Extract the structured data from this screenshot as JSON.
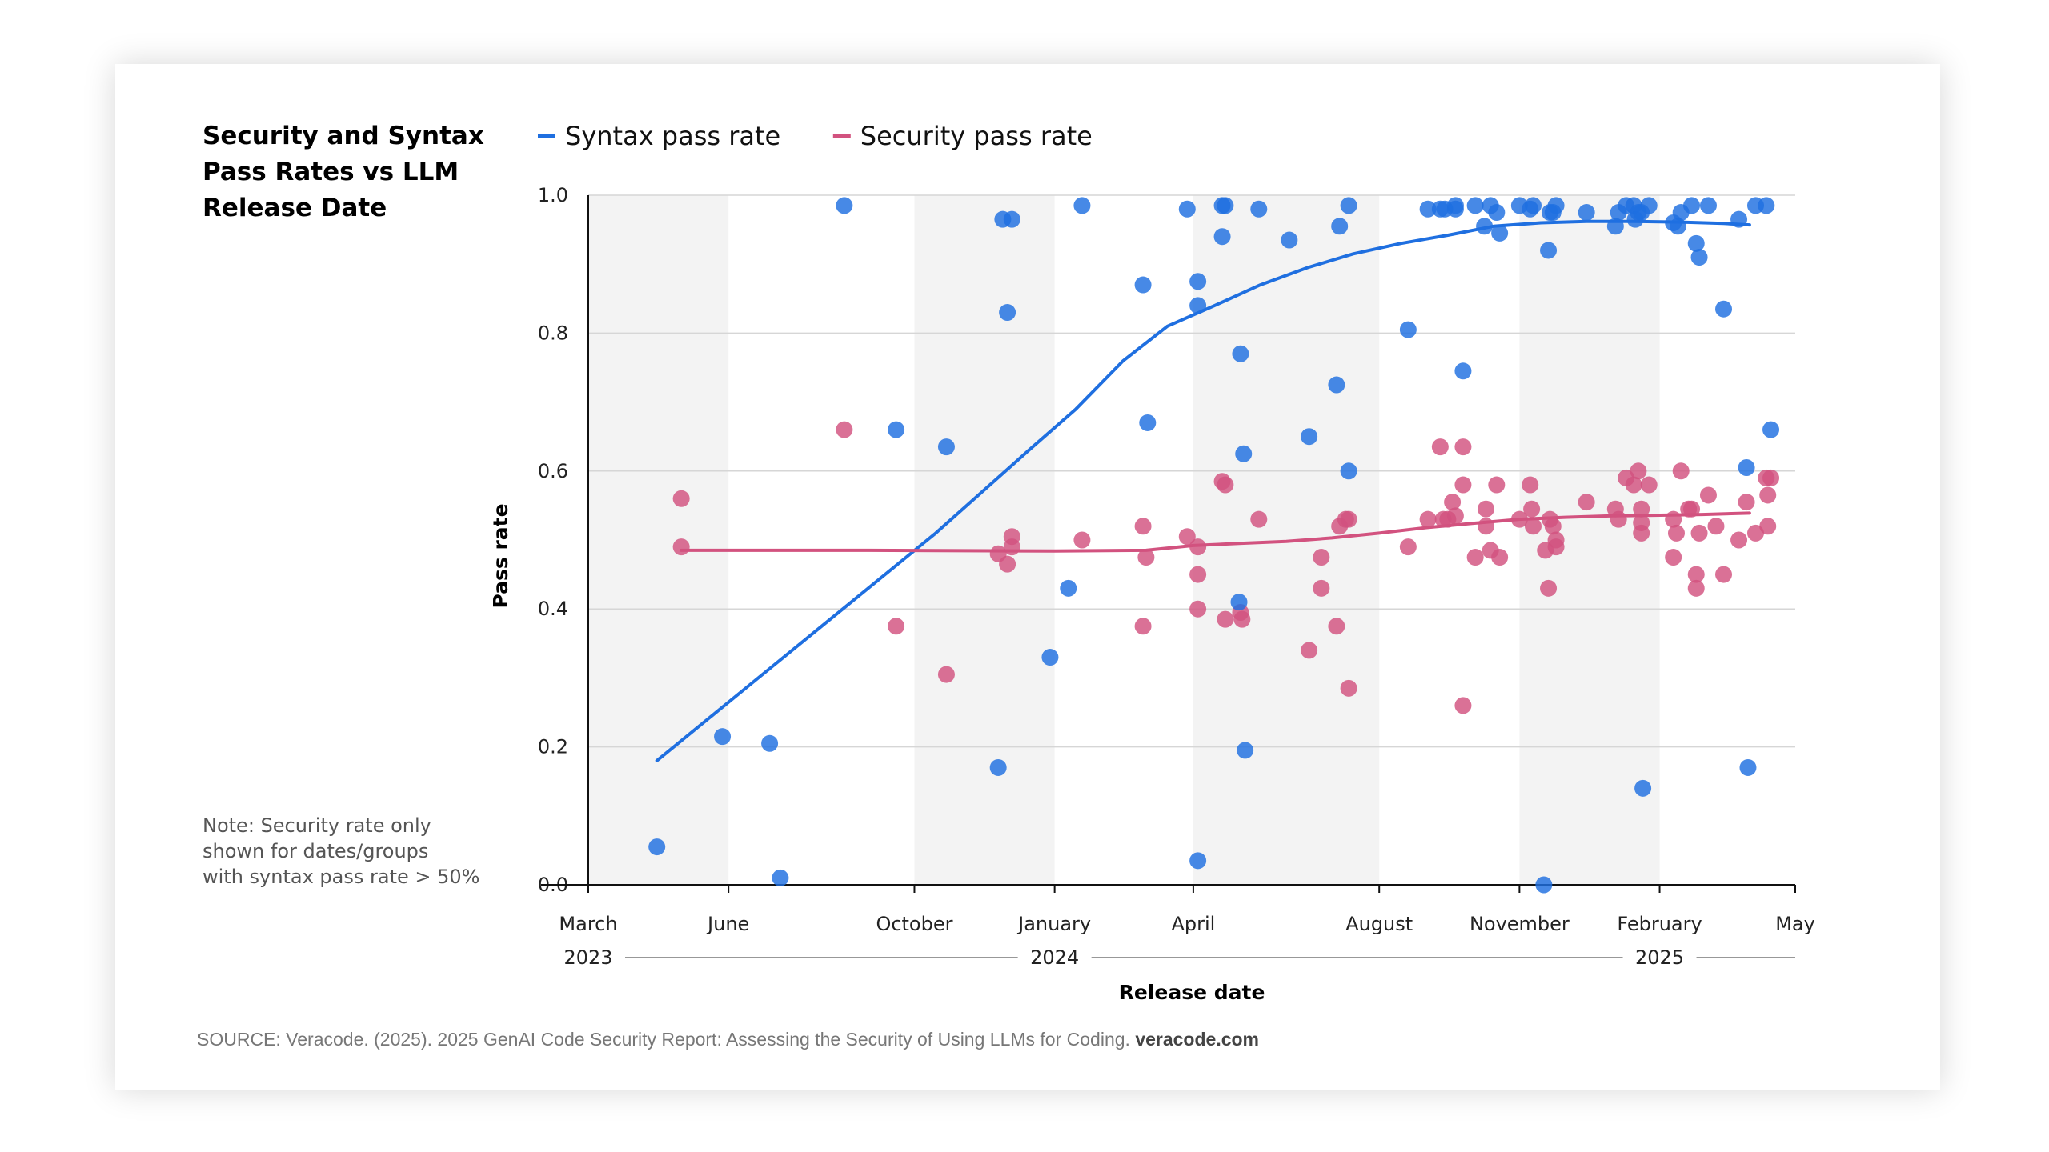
{
  "figure": {
    "title": "Security and Syntax\nPass Rates vs LLM\nRelease Date",
    "note": "Note: Security rate only\nshown for dates/groups\nwith syntax pass rate > 50%",
    "source_text": "SOURCE: Veracode. (2025). 2025 GenAI Code Security Report: Assessing the Security of Using LLMs for Coding.",
    "source_link": "veracode.com"
  },
  "chart_data": {
    "type": "scatter",
    "xlabel": "Release date",
    "ylabel": "Pass rate",
    "xlim": [
      "2023-03-01",
      "2025-05-01"
    ],
    "ylim": [
      0,
      1
    ],
    "grid": "horizontal",
    "legend_position": "top",
    "x_ticks": [
      {
        "date": "2023-03-01",
        "label": "March"
      },
      {
        "date": "2023-06-01",
        "label": "June"
      },
      {
        "date": "2023-10-01",
        "label": "October"
      },
      {
        "date": "2024-01-01",
        "label": "January"
      },
      {
        "date": "2024-04-01",
        "label": "April"
      },
      {
        "date": "2024-08-01",
        "label": "August"
      },
      {
        "date": "2024-11-01",
        "label": "November"
      },
      {
        "date": "2025-02-01",
        "label": "February"
      },
      {
        "date": "2025-05-01",
        "label": "May"
      }
    ],
    "year_labels": [
      {
        "date": "2023-03-01",
        "label": "2023"
      },
      {
        "date": "2024-01-01",
        "label": "2024"
      },
      {
        "date": "2025-02-01",
        "label": "2025"
      }
    ],
    "y_ticks": [
      {
        "value": 0.0,
        "label": "0.0"
      },
      {
        "value": 0.2,
        "label": "0.2"
      },
      {
        "value": 0.4,
        "label": "0.4"
      },
      {
        "value": 0.6,
        "label": "0.6"
      },
      {
        "value": 0.8,
        "label": "0.8"
      },
      {
        "value": 1.0,
        "label": "1.0"
      }
    ],
    "shaded_bands": [
      [
        "2023-03-01",
        "2023-06-01"
      ],
      [
        "2023-10-01",
        "2024-01-01"
      ],
      [
        "2024-04-01",
        "2024-08-01"
      ],
      [
        "2024-11-01",
        "2025-02-01"
      ]
    ],
    "series": [
      {
        "name": "Syntax pass rate",
        "color": "#1f6fe0",
        "trend": [
          [
            "2023-04-15",
            0.18
          ],
          [
            "2023-06-15",
            0.29
          ],
          [
            "2023-08-15",
            0.4
          ],
          [
            "2023-10-15",
            0.51
          ],
          [
            "2023-12-15",
            0.63
          ],
          [
            "2024-01-15",
            0.69
          ],
          [
            "2024-02-15",
            0.76
          ],
          [
            "2024-03-15",
            0.81
          ],
          [
            "2024-04-15",
            0.84
          ],
          [
            "2024-05-15",
            0.87
          ],
          [
            "2024-06-15",
            0.895
          ],
          [
            "2024-07-15",
            0.915
          ],
          [
            "2024-08-15",
            0.93
          ],
          [
            "2024-09-15",
            0.942
          ],
          [
            "2024-10-15",
            0.955
          ],
          [
            "2024-11-15",
            0.96
          ],
          [
            "2024-12-15",
            0.962
          ],
          [
            "2025-01-15",
            0.962
          ],
          [
            "2025-02-15",
            0.961
          ],
          [
            "2025-03-15",
            0.959
          ],
          [
            "2025-04-01",
            0.957
          ]
        ],
        "points": [
          [
            "2023-04-15",
            0.055
          ],
          [
            "2023-05-28",
            0.215
          ],
          [
            "2023-06-28",
            0.205
          ],
          [
            "2023-07-05",
            0.01
          ],
          [
            "2023-08-16",
            0.985
          ],
          [
            "2023-09-19",
            0.66
          ],
          [
            "2023-10-22",
            0.635
          ],
          [
            "2023-11-28",
            0.965
          ],
          [
            "2023-12-01",
            0.83
          ],
          [
            "2023-12-04",
            0.965
          ],
          [
            "2023-11-25",
            0.17
          ],
          [
            "2023-12-29",
            0.33
          ],
          [
            "2024-01-10",
            0.43
          ],
          [
            "2024-01-19",
            0.985
          ],
          [
            "2024-02-28",
            0.87
          ],
          [
            "2024-03-02",
            0.67
          ],
          [
            "2024-03-28",
            0.98
          ],
          [
            "2024-04-04",
            0.84
          ],
          [
            "2024-04-04",
            0.875
          ],
          [
            "2024-04-04",
            0.035
          ],
          [
            "2024-04-20",
            0.985
          ],
          [
            "2024-04-22",
            0.985
          ],
          [
            "2024-04-20",
            0.94
          ],
          [
            "2024-05-01",
            0.41
          ],
          [
            "2024-05-02",
            0.77
          ],
          [
            "2024-05-04",
            0.625
          ],
          [
            "2024-05-05",
            0.195
          ],
          [
            "2024-05-14",
            0.98
          ],
          [
            "2024-06-03",
            0.935
          ],
          [
            "2024-06-16",
            0.65
          ],
          [
            "2024-07-04",
            0.725
          ],
          [
            "2024-07-06",
            0.955
          ],
          [
            "2024-07-12",
            0.985
          ],
          [
            "2024-07-12",
            0.6
          ],
          [
            "2024-08-20",
            0.805
          ],
          [
            "2024-09-02",
            0.98
          ],
          [
            "2024-09-10",
            0.98
          ],
          [
            "2024-09-13",
            0.98
          ],
          [
            "2024-09-20",
            0.985
          ],
          [
            "2024-09-20",
            0.98
          ],
          [
            "2024-09-25",
            0.745
          ],
          [
            "2024-10-03",
            0.985
          ],
          [
            "2024-10-09",
            0.955
          ],
          [
            "2024-10-13",
            0.985
          ],
          [
            "2024-10-17",
            0.975
          ],
          [
            "2024-10-19",
            0.945
          ],
          [
            "2024-11-01",
            0.985
          ],
          [
            "2024-11-08",
            0.98
          ],
          [
            "2024-11-10",
            0.985
          ],
          [
            "2024-11-17",
            0.0
          ],
          [
            "2024-11-20",
            0.92
          ],
          [
            "2024-11-21",
            0.975
          ],
          [
            "2024-11-23",
            0.975
          ],
          [
            "2024-11-25",
            0.985
          ],
          [
            "2024-12-15",
            0.975
          ],
          [
            "2025-01-03",
            0.955
          ],
          [
            "2025-01-05",
            0.975
          ],
          [
            "2025-01-10",
            0.985
          ],
          [
            "2025-01-15",
            0.985
          ],
          [
            "2025-01-16",
            0.965
          ],
          [
            "2025-01-18",
            0.975
          ],
          [
            "2025-01-20",
            0.975
          ],
          [
            "2025-01-21",
            0.14
          ],
          [
            "2025-01-25",
            0.985
          ],
          [
            "2025-02-10",
            0.96
          ],
          [
            "2025-02-13",
            0.955
          ],
          [
            "2025-02-15",
            0.975
          ],
          [
            "2025-02-22",
            0.985
          ],
          [
            "2025-02-25",
            0.93
          ],
          [
            "2025-02-27",
            0.91
          ],
          [
            "2025-03-05",
            0.985
          ],
          [
            "2025-03-15",
            0.835
          ],
          [
            "2025-03-25",
            0.965
          ],
          [
            "2025-03-30",
            0.605
          ],
          [
            "2025-03-31",
            0.17
          ],
          [
            "2025-04-05",
            0.985
          ],
          [
            "2025-04-12",
            0.985
          ],
          [
            "2025-04-15",
            0.66
          ]
        ]
      },
      {
        "name": "Security pass rate",
        "color": "#d2527f",
        "trend": [
          [
            "2023-05-01",
            0.485
          ],
          [
            "2023-09-01",
            0.485
          ],
          [
            "2024-01-01",
            0.484
          ],
          [
            "2024-03-01",
            0.485
          ],
          [
            "2024-04-01",
            0.492
          ],
          [
            "2024-05-01",
            0.495
          ],
          [
            "2024-06-01",
            0.498
          ],
          [
            "2024-07-01",
            0.503
          ],
          [
            "2024-08-01",
            0.51
          ],
          [
            "2024-09-01",
            0.518
          ],
          [
            "2024-10-01",
            0.524
          ],
          [
            "2024-11-01",
            0.53
          ],
          [
            "2024-12-01",
            0.533
          ],
          [
            "2025-01-01",
            0.535
          ],
          [
            "2025-02-01",
            0.536
          ],
          [
            "2025-03-01",
            0.537
          ],
          [
            "2025-04-01",
            0.539
          ]
        ],
        "points": [
          [
            "2023-05-01",
            0.56
          ],
          [
            "2023-05-01",
            0.49
          ],
          [
            "2023-08-16",
            0.66
          ],
          [
            "2023-09-19",
            0.375
          ],
          [
            "2023-10-22",
            0.305
          ],
          [
            "2023-11-25",
            0.48
          ],
          [
            "2023-12-01",
            0.465
          ],
          [
            "2023-12-04",
            0.505
          ],
          [
            "2023-12-04",
            0.49
          ],
          [
            "2024-01-19",
            0.5
          ],
          [
            "2024-02-28",
            0.52
          ],
          [
            "2024-02-28",
            0.375
          ],
          [
            "2024-03-01",
            0.475
          ],
          [
            "2024-03-28",
            0.505
          ],
          [
            "2024-04-04",
            0.49
          ],
          [
            "2024-04-04",
            0.45
          ],
          [
            "2024-04-04",
            0.4
          ],
          [
            "2024-04-20",
            0.585
          ],
          [
            "2024-04-22",
            0.58
          ],
          [
            "2024-04-22",
            0.385
          ],
          [
            "2024-05-02",
            0.395
          ],
          [
            "2024-05-03",
            0.385
          ],
          [
            "2024-05-14",
            0.53
          ],
          [
            "2024-06-16",
            0.34
          ],
          [
            "2024-06-24",
            0.475
          ],
          [
            "2024-06-24",
            0.43
          ],
          [
            "2024-07-04",
            0.375
          ],
          [
            "2024-07-06",
            0.52
          ],
          [
            "2024-07-10",
            0.53
          ],
          [
            "2024-07-12",
            0.53
          ],
          [
            "2024-07-12",
            0.285
          ],
          [
            "2024-08-20",
            0.49
          ],
          [
            "2024-09-02",
            0.53
          ],
          [
            "2024-09-10",
            0.635
          ],
          [
            "2024-09-12",
            0.53
          ],
          [
            "2024-09-15",
            0.53
          ],
          [
            "2024-09-18",
            0.555
          ],
          [
            "2024-09-20",
            0.535
          ],
          [
            "2024-09-25",
            0.635
          ],
          [
            "2024-09-25",
            0.58
          ],
          [
            "2024-09-25",
            0.26
          ],
          [
            "2024-10-03",
            0.475
          ],
          [
            "2024-10-10",
            0.545
          ],
          [
            "2024-10-10",
            0.52
          ],
          [
            "2024-10-13",
            0.485
          ],
          [
            "2024-10-17",
            0.58
          ],
          [
            "2024-10-19",
            0.475
          ],
          [
            "2024-11-01",
            0.53
          ],
          [
            "2024-11-08",
            0.58
          ],
          [
            "2024-11-09",
            0.545
          ],
          [
            "2024-11-10",
            0.52
          ],
          [
            "2024-11-18",
            0.485
          ],
          [
            "2024-11-20",
            0.43
          ],
          [
            "2024-11-21",
            0.53
          ],
          [
            "2024-11-23",
            0.52
          ],
          [
            "2024-11-25",
            0.5
          ],
          [
            "2024-11-25",
            0.49
          ],
          [
            "2024-12-15",
            0.555
          ],
          [
            "2025-01-03",
            0.545
          ],
          [
            "2025-01-05",
            0.53
          ],
          [
            "2025-01-10",
            0.59
          ],
          [
            "2025-01-15",
            0.58
          ],
          [
            "2025-01-18",
            0.6
          ],
          [
            "2025-01-20",
            0.545
          ],
          [
            "2025-01-20",
            0.525
          ],
          [
            "2025-01-20",
            0.51
          ],
          [
            "2025-01-25",
            0.58
          ],
          [
            "2025-02-10",
            0.53
          ],
          [
            "2025-02-10",
            0.475
          ],
          [
            "2025-02-12",
            0.51
          ],
          [
            "2025-02-15",
            0.6
          ],
          [
            "2025-02-20",
            0.545
          ],
          [
            "2025-02-22",
            0.545
          ],
          [
            "2025-02-25",
            0.45
          ],
          [
            "2025-02-25",
            0.43
          ],
          [
            "2025-02-27",
            0.51
          ],
          [
            "2025-03-05",
            0.565
          ],
          [
            "2025-03-10",
            0.52
          ],
          [
            "2025-03-15",
            0.45
          ],
          [
            "2025-03-25",
            0.5
          ],
          [
            "2025-03-30",
            0.555
          ],
          [
            "2025-04-05",
            0.51
          ],
          [
            "2025-04-12",
            0.59
          ],
          [
            "2025-04-13",
            0.565
          ],
          [
            "2025-04-13",
            0.52
          ],
          [
            "2025-04-15",
            0.59
          ]
        ]
      }
    ]
  }
}
